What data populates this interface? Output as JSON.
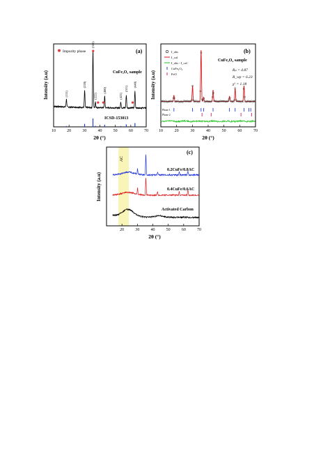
{
  "colors": {
    "axis": "#000000",
    "pattern": "#000000",
    "ref": "#1f3fd6",
    "impurity": "#e23a3a",
    "calc": "#d81b1b",
    "diff": "#22c41f",
    "phase1": "#1f3fd6",
    "phase2": "#d81b60",
    "blue": "#2233dd",
    "red": "#dd2222",
    "black": "#000000",
    "ac_band": "#f7f3a6"
  },
  "chart_data": [
    {
      "id": "a",
      "type": "line",
      "panel_label": "(a)",
      "xlabel": "2θ (°)",
      "ylabel": "Intensity (a.u)",
      "xlim": [
        10,
        70
      ],
      "xticks": [
        10,
        20,
        30,
        40,
        50,
        60,
        70
      ],
      "legend": "Impurity phase",
      "sample_label": "CuFe₂O₄ sample",
      "ref_label": "ICSD-153013",
      "peaks": [
        {
          "x": 18.3,
          "y": 0.14,
          "label": "(111)"
        },
        {
          "x": 30.1,
          "y": 0.3,
          "label": "(220)"
        },
        {
          "x": 35.5,
          "y": 1.0,
          "label": "(311)"
        },
        {
          "x": 37.1,
          "y": 0.1,
          "label": "(222)"
        },
        {
          "x": 43.1,
          "y": 0.2,
          "label": "(400)"
        },
        {
          "x": 53.5,
          "y": 0.1,
          "label": "(422)"
        },
        {
          "x": 57.1,
          "y": 0.23,
          "label": "(511)"
        },
        {
          "x": 62.7,
          "y": 0.3,
          "label": "(440)"
        }
      ],
      "impurity_x": [
        35.6,
        38.8,
        42.2,
        61.2
      ],
      "ref_sticks": [
        {
          "x": 18.3,
          "h": 0.1
        },
        {
          "x": 30.1,
          "h": 0.35
        },
        {
          "x": 35.5,
          "h": 1.0
        },
        {
          "x": 37.1,
          "h": 0.12
        },
        {
          "x": 43.1,
          "h": 0.25
        },
        {
          "x": 53.5,
          "h": 0.1
        },
        {
          "x": 57.1,
          "h": 0.3
        },
        {
          "x": 62.7,
          "h": 0.45
        }
      ]
    },
    {
      "id": "b",
      "type": "line",
      "panel_label": "(b)",
      "xlabel": "2θ (°)",
      "ylabel": "Intensity (a.u)",
      "xlim": [
        10,
        70
      ],
      "xticks": [
        10,
        20,
        30,
        40,
        50,
        60,
        70
      ],
      "sample_label": "CuFe₂O₄ sample",
      "legend": [
        "I_obs",
        "I_cal",
        "I_obs - I_cal",
        "CuFe₂O₄",
        "FeO"
      ],
      "stats": [
        "Rₚ = 4.87",
        "R_wp = 6.23",
        "χ² = 1.18"
      ],
      "phase_labels": [
        "Phase 1",
        "Phase 2"
      ],
      "peaks": [
        {
          "x": 18.3,
          "y": 0.12
        },
        {
          "x": 30.1,
          "y": 0.3
        },
        {
          "x": 35.5,
          "y": 1.0
        },
        {
          "x": 37.1,
          "y": 0.08
        },
        {
          "x": 43.1,
          "y": 0.22
        },
        {
          "x": 53.5,
          "y": 0.1
        },
        {
          "x": 57.1,
          "y": 0.25
        },
        {
          "x": 62.7,
          "y": 0.3
        }
      ],
      "phase1_x": [
        18.3,
        30.1,
        35.5,
        37.1,
        43.1,
        53.5,
        57.1,
        62.7,
        65.8,
        67.0
      ],
      "phase2_x": [
        36.1,
        41.9,
        60.8,
        67.5
      ]
    },
    {
      "id": "c",
      "type": "line",
      "panel_label": "(c)",
      "xlabel": "2θ (°)",
      "ylabel": "Intensity (a.u)",
      "xlim": [
        10,
        70
      ],
      "xticks": [
        20,
        30,
        40,
        50,
        60,
        70
      ],
      "band_label": "AC",
      "band_range": [
        21,
        27
      ],
      "series": [
        {
          "name": "0.2CuFe/0.8AC",
          "color_key": "blue",
          "peaks": [
            {
              "x": 30.1,
              "y": 0.25
            },
            {
              "x": 35.5,
              "y": 1.0
            },
            {
              "x": 43.1,
              "y": 0.15
            },
            {
              "x": 57.1,
              "y": 0.15
            },
            {
              "x": 62.7,
              "y": 0.2
            }
          ]
        },
        {
          "name": "0.4CuFe/0.6AC",
          "color_key": "red",
          "peaks": [
            {
              "x": 30.1,
              "y": 0.35
            },
            {
              "x": 35.5,
              "y": 1.0
            },
            {
              "x": 43.1,
              "y": 0.2
            },
            {
              "x": 57.1,
              "y": 0.2
            },
            {
              "x": 62.7,
              "y": 0.3
            }
          ]
        },
        {
          "name": "Activated Carbon",
          "color_key": "black",
          "peaks": []
        }
      ]
    }
  ]
}
